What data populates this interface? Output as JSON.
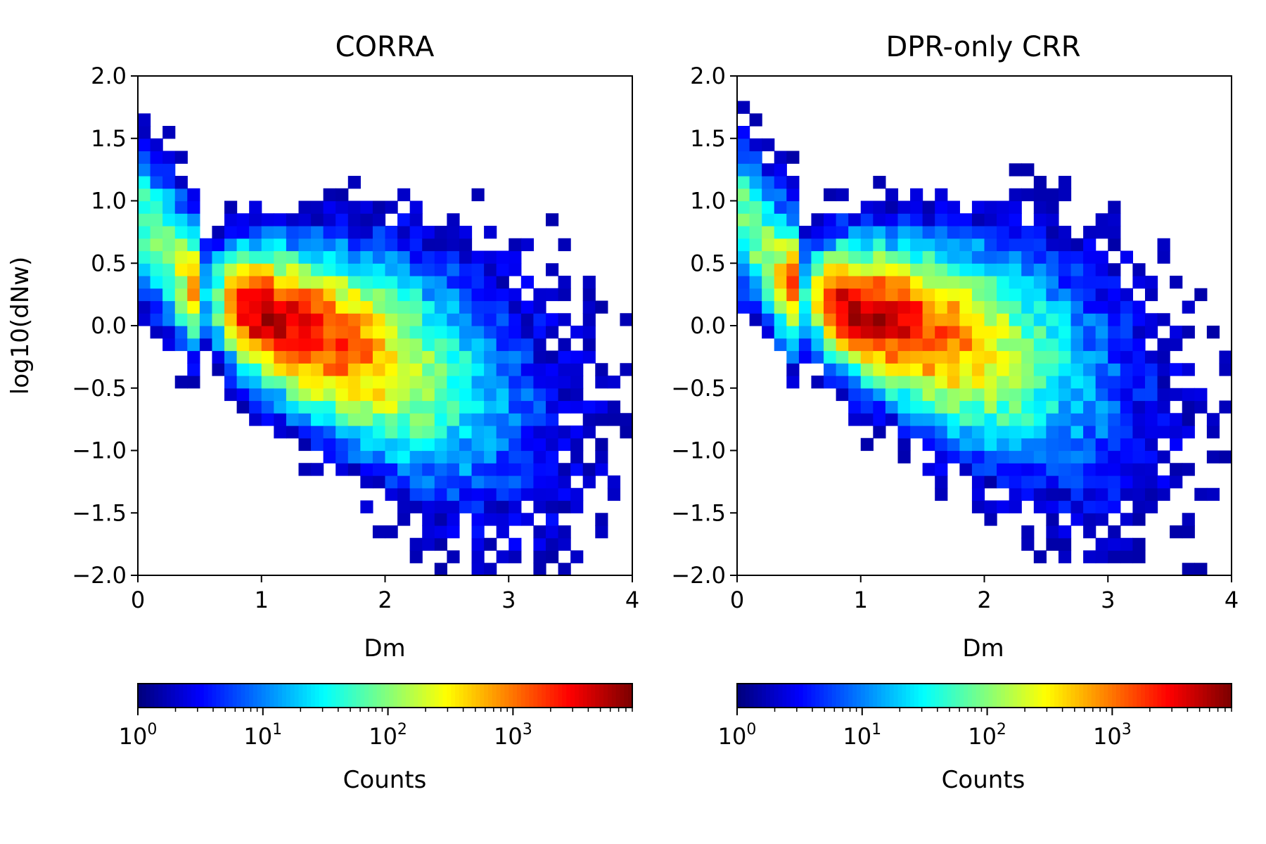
{
  "chart_data": [
    {
      "type": "heatmap",
      "title": "CORRA",
      "xlabel": "Dm",
      "ylabel": "log10(dNw)",
      "xlim": [
        0,
        4
      ],
      "ylim": [
        -2.0,
        2.0
      ],
      "xticks": [
        "0",
        "1",
        "2",
        "3",
        "4"
      ],
      "yticks": [
        "2.0",
        "1.5",
        "1.0",
        "0.5",
        "0.0",
        "−0.5",
        "−1.0",
        "−1.5",
        "−2.0"
      ],
      "colormap": "jet",
      "color_scale": "log",
      "colorbar": {
        "label": "Counts",
        "min": 1,
        "max": 9000,
        "ticks": [
          1,
          10,
          100,
          1000
        ],
        "orientation": "horizontal"
      },
      "density_ridge": {
        "peak_dm": 0.95,
        "peak_log10dNw": 0.1,
        "slope": -0.35,
        "peak_counts": 8000
      }
    },
    {
      "type": "heatmap",
      "title": "DPR-only CRR",
      "xlabel": "Dm",
      "ylabel": "",
      "xlim": [
        0,
        4
      ],
      "ylim": [
        -2.0,
        2.0
      ],
      "xticks": [
        "0",
        "1",
        "2",
        "3",
        "4"
      ],
      "yticks": [
        "2.0",
        "1.5",
        "1.0",
        "0.5",
        "0.0",
        "−0.5",
        "−1.0",
        "−1.5",
        "−2.0"
      ],
      "colormap": "jet",
      "color_scale": "log",
      "colorbar": {
        "label": "Counts",
        "min": 1,
        "max": 9000,
        "ticks": [
          1,
          10,
          100,
          1000
        ],
        "orientation": "horizontal"
      },
      "density_ridge": {
        "peak_dm": 0.9,
        "peak_log10dNw": 0.15,
        "slope": -0.3,
        "peak_counts": 8000
      }
    }
  ]
}
